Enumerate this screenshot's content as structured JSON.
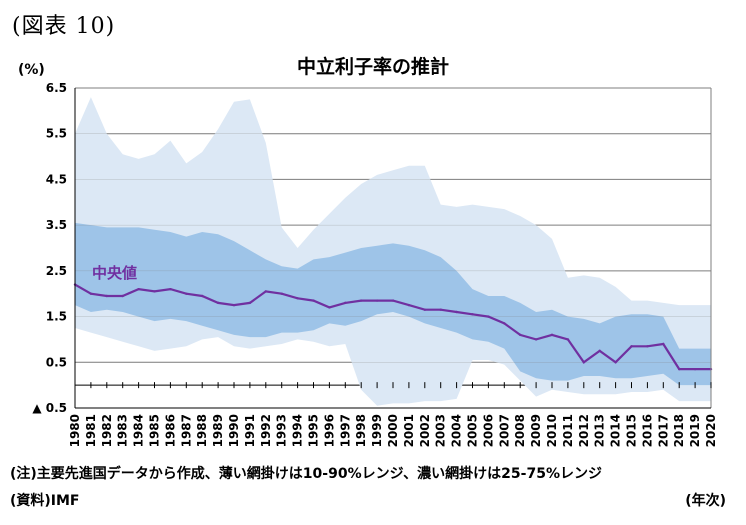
{
  "figure_label": "(図表 10)",
  "title": "中立利子率の推計",
  "unit_label": "(%)",
  "x_unit_label": "(年次)",
  "note": "(注)主要先進国データから作成、薄い網掛けは10-90%レンジ、濃い網掛けは25-75%レンジ",
  "source": "(資料)IMF",
  "chart_data": {
    "type": "area",
    "title": "中立利子率の推計",
    "ylabel": "(%)",
    "xlabel": "(年次)",
    "ylim": [
      -0.5,
      6.5
    ],
    "y_ticks": [
      {
        "value": 6.5,
        "label": "6.5"
      },
      {
        "value": 5.5,
        "label": "5.5"
      },
      {
        "value": 4.5,
        "label": "4.5"
      },
      {
        "value": 3.5,
        "label": "3.5"
      },
      {
        "value": 2.5,
        "label": "2.5"
      },
      {
        "value": 1.5,
        "label": "1.5"
      },
      {
        "value": 0.5,
        "label": "0.5"
      },
      {
        "value": -0.5,
        "label": "▲ 0.5"
      }
    ],
    "x": [
      1980,
      1981,
      1982,
      1983,
      1984,
      1985,
      1986,
      1987,
      1988,
      1989,
      1990,
      1991,
      1992,
      1993,
      1994,
      1995,
      1996,
      1997,
      1998,
      1999,
      2000,
      2001,
      2002,
      2003,
      2004,
      2005,
      2006,
      2007,
      2008,
      2009,
      2010,
      2011,
      2012,
      2013,
      2014,
      2015,
      2016,
      2017,
      2018,
      2019,
      2020
    ],
    "series": [
      {
        "name": "90",
        "role": "p90",
        "color": "#dce8f5",
        "values": [
          5.5,
          6.3,
          5.5,
          5.05,
          4.95,
          5.05,
          5.35,
          4.85,
          5.1,
          5.6,
          6.2,
          6.25,
          5.3,
          3.45,
          3.0,
          3.4,
          3.75,
          4.1,
          4.4,
          4.6,
          4.7,
          4.8,
          4.8,
          3.95,
          3.9,
          3.95,
          3.9,
          3.85,
          3.7,
          3.5,
          3.2,
          2.35,
          2.4,
          2.35,
          2.15,
          1.85,
          1.85,
          1.8,
          1.75,
          1.75,
          1.75
        ]
      },
      {
        "name": "75",
        "role": "p75",
        "color": "#9ec4e8",
        "values": [
          3.55,
          3.5,
          3.45,
          3.45,
          3.45,
          3.4,
          3.35,
          3.25,
          3.35,
          3.3,
          3.15,
          2.95,
          2.75,
          2.6,
          2.55,
          2.75,
          2.8,
          2.9,
          3.0,
          3.05,
          3.1,
          3.05,
          2.95,
          2.8,
          2.5,
          2.1,
          1.95,
          1.95,
          1.8,
          1.6,
          1.65,
          1.5,
          1.45,
          1.35,
          1.5,
          1.55,
          1.55,
          1.5,
          0.8,
          0.8,
          0.8
        ]
      },
      {
        "name": "中央値",
        "role": "median",
        "color": "#7030a0",
        "values": [
          2.2,
          2.0,
          1.95,
          1.95,
          2.1,
          2.05,
          2.1,
          2.0,
          1.95,
          1.8,
          1.75,
          1.8,
          2.05,
          2.0,
          1.9,
          1.85,
          1.7,
          1.8,
          1.85,
          1.85,
          1.85,
          1.75,
          1.65,
          1.65,
          1.6,
          1.55,
          1.5,
          1.35,
          1.1,
          1.0,
          1.1,
          1.0,
          0.5,
          0.75,
          0.5,
          0.85,
          0.85,
          0.9,
          0.35,
          0.35,
          0.35
        ]
      },
      {
        "name": "25",
        "role": "p25",
        "color": "#9ec4e8",
        "values": [
          1.75,
          1.6,
          1.65,
          1.6,
          1.5,
          1.4,
          1.45,
          1.4,
          1.3,
          1.2,
          1.1,
          1.05,
          1.05,
          1.15,
          1.15,
          1.2,
          1.35,
          1.3,
          1.4,
          1.55,
          1.6,
          1.5,
          1.35,
          1.25,
          1.15,
          1.0,
          0.95,
          0.8,
          0.3,
          0.15,
          0.1,
          0.1,
          0.2,
          0.2,
          0.15,
          0.15,
          0.2,
          0.25,
          0.0,
          0.0,
          0.0
        ]
      },
      {
        "name": "10",
        "role": "p10",
        "color": "#dce8f5",
        "values": [
          1.25,
          1.15,
          1.05,
          0.95,
          0.85,
          0.75,
          0.8,
          0.85,
          1.0,
          1.05,
          0.85,
          0.8,
          0.85,
          0.9,
          1.0,
          0.95,
          0.85,
          0.9,
          -0.1,
          -0.45,
          -0.4,
          -0.4,
          -0.35,
          -0.35,
          -0.3,
          0.55,
          0.55,
          0.45,
          0.1,
          -0.25,
          -0.1,
          -0.15,
          -0.2,
          -0.2,
          -0.2,
          -0.15,
          -0.15,
          -0.1,
          -0.35,
          -0.35,
          -0.35
        ]
      }
    ],
    "median_label": "中央値",
    "grid": true,
    "legend": "none"
  }
}
